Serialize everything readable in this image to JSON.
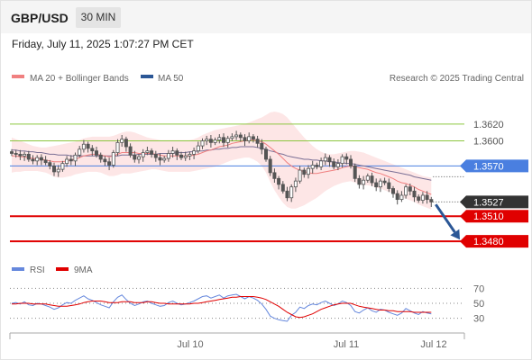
{
  "header": {
    "symbol": "GBP/USD",
    "timeframe": "30 MIN"
  },
  "datetime": "Friday, July 11, 2025 1:07:27 PM CET",
  "legend": {
    "ma20_label": "MA 20 + Bollinger Bands",
    "ma50_label": "MA 50",
    "copyright": "Research © 2025 Trading Central",
    "rsi_label": "RSI",
    "rsi_ma_label": "9MA"
  },
  "colors": {
    "candle": "#555555",
    "ma20": "#f08080",
    "bollinger_fill": "#fde0e0",
    "ma50": "#7a6f95",
    "green_level": "#8cc63f",
    "blue_level": "#4a7fe0",
    "red_level": "#e00000",
    "last_price_tag": "#333333",
    "arrow": "#2b5796",
    "rsi": "#6688dd",
    "rsi_ma": "#e00000"
  },
  "chart_data": [
    {
      "type": "candlestick",
      "name": "GBP/USD 30 MIN",
      "x_ticks": [
        "Jul 10",
        "Jul 11",
        "Jul 12"
      ],
      "ylim": [
        1.3464,
        1.365
      ],
      "levels": [
        {
          "value": 1.362,
          "label": "1.3620",
          "kind": "resistance"
        },
        {
          "value": 1.36,
          "label": "1.3600",
          "kind": "resistance"
        },
        {
          "value": 1.357,
          "label": "1.3570",
          "kind": "pivot"
        },
        {
          "value": 1.351,
          "label": "1.3510",
          "kind": "support"
        },
        {
          "value": 1.348,
          "label": "1.3480",
          "kind": "support"
        }
      ],
      "last_price": {
        "value": 1.3527,
        "label": "1.3527"
      },
      "forecast_arrow": {
        "from": 1.3524,
        "to": 1.3482
      },
      "close": [
        1.3585,
        1.3584,
        1.3582,
        1.3584,
        1.3578,
        1.3576,
        1.358,
        1.3577,
        1.3574,
        1.357,
        1.3563,
        1.3566,
        1.3573,
        1.3578,
        1.3576,
        1.3583,
        1.359,
        1.3596,
        1.3591,
        1.3588,
        1.3583,
        1.3578,
        1.3575,
        1.3571,
        1.3586,
        1.3598,
        1.3602,
        1.3593,
        1.3583,
        1.3578,
        1.3581,
        1.3586,
        1.3588,
        1.3584,
        1.358,
        1.3577,
        1.3579,
        1.3585,
        1.3588,
        1.3583,
        1.358,
        1.3582,
        1.3584,
        1.3588,
        1.3594,
        1.36,
        1.3602,
        1.3598,
        1.3601,
        1.3604,
        1.3598,
        1.3603,
        1.3605,
        1.3607,
        1.3604,
        1.36,
        1.3605,
        1.3602,
        1.3597,
        1.359,
        1.3578,
        1.3562,
        1.3555,
        1.3548,
        1.354,
        1.3532,
        1.3545,
        1.3552,
        1.3565,
        1.356,
        1.3567,
        1.3571,
        1.3569,
        1.3576,
        1.358,
        1.3575,
        1.3569,
        1.3573,
        1.3581,
        1.3578,
        1.357,
        1.3555,
        1.3548,
        1.3553,
        1.3558,
        1.355,
        1.3545,
        1.3552,
        1.355,
        1.3543,
        1.3537,
        1.353,
        1.3535,
        1.3545,
        1.354,
        1.3533,
        1.3529,
        1.3535,
        1.353,
        1.3527
      ],
      "ma20": [
        1.3582,
        1.3582,
        1.3581,
        1.3581,
        1.358,
        1.3579,
        1.3579,
        1.3578,
        1.3577,
        1.3576,
        1.3575,
        1.3575,
        1.3575,
        1.3576,
        1.3577,
        1.3578,
        1.358,
        1.3582,
        1.3583,
        1.3584,
        1.3584,
        1.3583,
        1.3582,
        1.3581,
        1.3582,
        1.3584,
        1.3586,
        1.3586,
        1.3586,
        1.3586,
        1.3585,
        1.3585,
        1.3585,
        1.3585,
        1.3584,
        1.3583,
        1.3582,
        1.3582,
        1.3582,
        1.3582,
        1.3582,
        1.3582,
        1.3582,
        1.3583,
        1.3584,
        1.3586,
        1.3588,
        1.3589,
        1.3591,
        1.3593,
        1.3594,
        1.3595,
        1.3597,
        1.3598,
        1.3599,
        1.36,
        1.3601,
        1.3601,
        1.36,
        1.3599,
        1.3596,
        1.3592,
        1.3588,
        1.3584,
        1.3579,
        1.3574,
        1.357,
        1.3567,
        1.3565,
        1.3563,
        1.3562,
        1.3561,
        1.3561,
        1.3562,
        1.3563,
        1.3564,
        1.3565,
        1.3566,
        1.3568,
        1.3569,
        1.357,
        1.3569,
        1.3568,
        1.3567,
        1.3566,
        1.3564,
        1.3562,
        1.3561,
        1.3559,
        1.3557,
        1.3555,
        1.3552,
        1.355,
        1.3549,
        1.3547,
        1.3545,
        1.3542,
        1.354,
        1.3538,
        1.3536
      ],
      "bollinger_upper": [
        1.3604,
        1.3602,
        1.36,
        1.3598,
        1.3596,
        1.3594,
        1.3593,
        1.3592,
        1.3592,
        1.3593,
        1.3594,
        1.3595,
        1.3596,
        1.3597,
        1.3598,
        1.3599,
        1.3601,
        1.3603,
        1.3604,
        1.3605,
        1.3605,
        1.3605,
        1.3605,
        1.3605,
        1.3606,
        1.3608,
        1.361,
        1.3611,
        1.3611,
        1.361,
        1.3608,
        1.3606,
        1.3604,
        1.3603,
        1.3602,
        1.3601,
        1.3601,
        1.3601,
        1.3601,
        1.3601,
        1.3601,
        1.3601,
        1.3601,
        1.3602,
        1.3604,
        1.3607,
        1.3609,
        1.3611,
        1.3613,
        1.3614,
        1.3615,
        1.3616,
        1.3617,
        1.3618,
        1.3619,
        1.362,
        1.3622,
        1.3624,
        1.3626,
        1.3628,
        1.3631,
        1.3634,
        1.3635,
        1.3634,
        1.3632,
        1.3628,
        1.3622,
        1.3616,
        1.361,
        1.3604,
        1.3599,
        1.3594,
        1.359,
        1.3587,
        1.3585,
        1.3584,
        1.3584,
        1.3585,
        1.3586,
        1.3587,
        1.3588,
        1.3588,
        1.3587,
        1.3586,
        1.3584,
        1.3582,
        1.358,
        1.3578,
        1.3576,
        1.3574,
        1.3572,
        1.357,
        1.3568,
        1.3566,
        1.3564,
        1.3562,
        1.356,
        1.3558,
        1.3557,
        1.3556
      ],
      "bollinger_lower": [
        1.3562,
        1.3563,
        1.3563,
        1.3564,
        1.3564,
        1.3564,
        1.3564,
        1.3563,
        1.3562,
        1.356,
        1.3557,
        1.3556,
        1.3556,
        1.3557,
        1.3558,
        1.356,
        1.3561,
        1.3562,
        1.3563,
        1.3563,
        1.3563,
        1.3562,
        1.356,
        1.3558,
        1.3558,
        1.3559,
        1.3561,
        1.3561,
        1.3561,
        1.3562,
        1.3563,
        1.3564,
        1.3565,
        1.3566,
        1.3566,
        1.3565,
        1.3564,
        1.3563,
        1.3563,
        1.3563,
        1.3563,
        1.3563,
        1.3563,
        1.3564,
        1.3565,
        1.3566,
        1.3567,
        1.3568,
        1.3569,
        1.3571,
        1.3573,
        1.3575,
        1.3577,
        1.3578,
        1.3579,
        1.358,
        1.358,
        1.3578,
        1.3575,
        1.357,
        1.3562,
        1.3551,
        1.3541,
        1.3533,
        1.3526,
        1.3521,
        1.3519,
        1.3519,
        1.3521,
        1.3523,
        1.3526,
        1.3529,
        1.3532,
        1.3536,
        1.354,
        1.3543,
        1.3546,
        1.3548,
        1.355,
        1.3551,
        1.3552,
        1.355,
        1.3548,
        1.3547,
        1.3547,
        1.3546,
        1.3544,
        1.3543,
        1.3541,
        1.3539,
        1.3537,
        1.3534,
        1.3532,
        1.3531,
        1.3529,
        1.3527,
        1.3524,
        1.3522,
        1.352,
        1.3518
      ],
      "ma50": [
        1.3589,
        1.3589,
        1.3588,
        1.3588,
        1.3587,
        1.3587,
        1.3586,
        1.3586,
        1.3585,
        1.3584,
        1.3584,
        1.3583,
        1.3583,
        1.3583,
        1.3582,
        1.3582,
        1.3582,
        1.3582,
        1.3582,
        1.3582,
        1.3582,
        1.3582,
        1.3582,
        1.3582,
        1.3582,
        1.3582,
        1.3583,
        1.3583,
        1.3583,
        1.3583,
        1.3584,
        1.3584,
        1.3584,
        1.3584,
        1.3584,
        1.3585,
        1.3585,
        1.3585,
        1.3585,
        1.3586,
        1.3586,
        1.3586,
        1.3587,
        1.3587,
        1.3588,
        1.3588,
        1.3589,
        1.3589,
        1.359,
        1.359,
        1.3591,
        1.3591,
        1.3592,
        1.3592,
        1.3593,
        1.3593,
        1.3593,
        1.3593,
        1.3592,
        1.3591,
        1.359,
        1.3588,
        1.3587,
        1.3585,
        1.3584,
        1.3582,
        1.3581,
        1.358,
        1.3579,
        1.3578,
        1.3578,
        1.3577,
        1.3577,
        1.3576,
        1.3576,
        1.3575,
        1.3575,
        1.3574,
        1.3574,
        1.3573,
        1.3573,
        1.3572,
        1.3571,
        1.357,
        1.3569,
        1.3568,
        1.3567,
        1.3566,
        1.3565,
        1.3564,
        1.3563,
        1.3562,
        1.3561,
        1.356,
        1.3559,
        1.3557,
        1.3556,
        1.3555,
        1.3554,
        1.3553
      ]
    },
    {
      "type": "line",
      "name": "RSI",
      "ylim": [
        20,
        80
      ],
      "y_ticks": [
        70,
        50,
        30
      ],
      "rsi": [
        50,
        51,
        49,
        52,
        48,
        47,
        50,
        49,
        47,
        45,
        42,
        44,
        48,
        51,
        50,
        54,
        57,
        60,
        56,
        54,
        51,
        48,
        46,
        44,
        52,
        58,
        61,
        55,
        50,
        47,
        49,
        52,
        53,
        50,
        48,
        46,
        47,
        51,
        53,
        50,
        48,
        49,
        51,
        53,
        56,
        59,
        60,
        57,
        59,
        61,
        57,
        60,
        61,
        62,
        59,
        56,
        59,
        57,
        54,
        49,
        42,
        33,
        30,
        28,
        27,
        26,
        34,
        38,
        45,
        43,
        47,
        49,
        48,
        51,
        53,
        50,
        47,
        49,
        53,
        51,
        47,
        39,
        37,
        41,
        44,
        40,
        38,
        42,
        41,
        38,
        36,
        34,
        37,
        43,
        40,
        37,
        35,
        39,
        37,
        36
      ],
      "rsi_ma": [
        49,
        49,
        50,
        50,
        50,
        49,
        49,
        49,
        49,
        48,
        47,
        46,
        46,
        46,
        47,
        48,
        49,
        51,
        52,
        53,
        53,
        53,
        52,
        51,
        51,
        51,
        52,
        52,
        52,
        51,
        51,
        51,
        52,
        52,
        51,
        50,
        50,
        49,
        49,
        49,
        49,
        49,
        49,
        50,
        50,
        51,
        52,
        53,
        54,
        55,
        56,
        57,
        58,
        58,
        59,
        59,
        59,
        59,
        58,
        57,
        55,
        52,
        49,
        46,
        42,
        38,
        35,
        32,
        31,
        32,
        34,
        36,
        39,
        42,
        44,
        46,
        48,
        49,
        50,
        50,
        50,
        48,
        46,
        45,
        44,
        43,
        42,
        41,
        41,
        40,
        40,
        39,
        39,
        39,
        39,
        38,
        38,
        38,
        38,
        38
      ]
    }
  ]
}
